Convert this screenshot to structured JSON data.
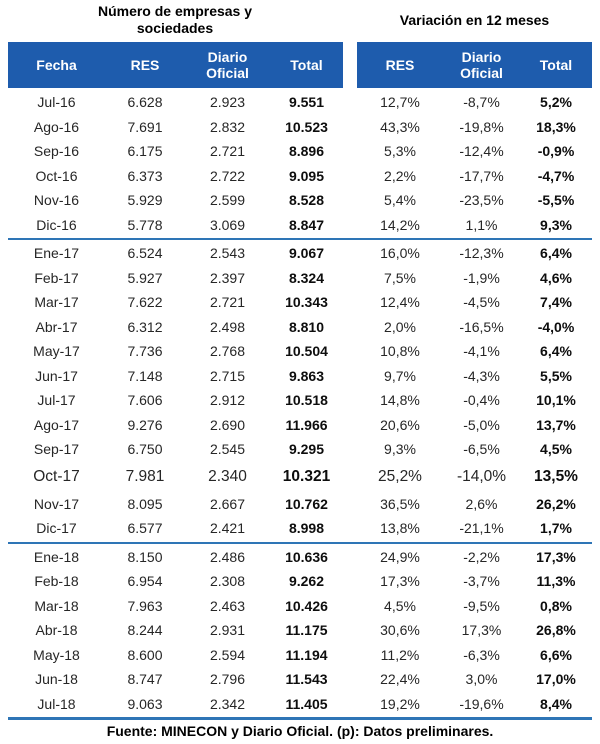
{
  "header": {
    "left_group_title": "Número de empresas y sociedades",
    "right_group_title": "Variación en 12 meses",
    "left_columns": [
      "Fecha",
      "RES",
      "Diario Oficial",
      "Total"
    ],
    "right_columns": [
      "RES",
      "Diario Oficial",
      "Total"
    ]
  },
  "colors": {
    "header_bg": "#1E5CAD",
    "separator": "#2E75B6",
    "header_text": "#FFFFFF"
  },
  "rows": [
    {
      "fecha": "Jul-16",
      "res": "6.628",
      "dio": "2.923",
      "total": "9.551",
      "res_var": "12,7%",
      "dio_var": "-8,7%",
      "total_var": "5,2%"
    },
    {
      "fecha": "Ago-16",
      "res": "7.691",
      "dio": "2.832",
      "total": "10.523",
      "res_var": "43,3%",
      "dio_var": "-19,8%",
      "total_var": "18,3%"
    },
    {
      "fecha": "Sep-16",
      "res": "6.175",
      "dio": "2.721",
      "total": "8.896",
      "res_var": "5,3%",
      "dio_var": "-12,4%",
      "total_var": "-0,9%"
    },
    {
      "fecha": "Oct-16",
      "res": "6.373",
      "dio": "2.722",
      "total": "9.095",
      "res_var": "2,2%",
      "dio_var": "-17,7%",
      "total_var": "-4,7%"
    },
    {
      "fecha": "Nov-16",
      "res": "5.929",
      "dio": "2.599",
      "total": "8.528",
      "res_var": "5,4%",
      "dio_var": "-23,5%",
      "total_var": "-5,5%"
    },
    {
      "fecha": "Dic-16",
      "res": "5.778",
      "dio": "3.069",
      "total": "8.847",
      "res_var": "14,2%",
      "dio_var": "1,1%",
      "total_var": "9,3%",
      "separator_after": true
    },
    {
      "fecha": "Ene-17",
      "res": "6.524",
      "dio": "2.543",
      "total": "9.067",
      "res_var": "16,0%",
      "dio_var": "-12,3%",
      "total_var": "6,4%"
    },
    {
      "fecha": "Feb-17",
      "res": "5.927",
      "dio": "2.397",
      "total": "8.324",
      "res_var": "7,5%",
      "dio_var": "-1,9%",
      "total_var": "4,6%"
    },
    {
      "fecha": "Mar-17",
      "res": "7.622",
      "dio": "2.721",
      "total": "10.343",
      "res_var": "12,4%",
      "dio_var": "-4,5%",
      "total_var": "7,4%"
    },
    {
      "fecha": "Abr-17",
      "res": "6.312",
      "dio": "2.498",
      "total": "8.810",
      "res_var": "2,0%",
      "dio_var": "-16,5%",
      "total_var": "-4,0%"
    },
    {
      "fecha": "May-17",
      "res": "7.736",
      "dio": "2.768",
      "total": "10.504",
      "res_var": "10,8%",
      "dio_var": "-4,1%",
      "total_var": "6,4%"
    },
    {
      "fecha": "Jun-17",
      "res": "7.148",
      "dio": "2.715",
      "total": "9.863",
      "res_var": "9,7%",
      "dio_var": "-4,3%",
      "total_var": "5,5%"
    },
    {
      "fecha": "Jul-17",
      "res": "7.606",
      "dio": "2.912",
      "total": "10.518",
      "res_var": "14,8%",
      "dio_var": "-0,4%",
      "total_var": "10,1%"
    },
    {
      "fecha": "Ago-17",
      "res": "9.276",
      "dio": "2.690",
      "total": "11.966",
      "res_var": "20,6%",
      "dio_var": "-5,0%",
      "total_var": "13,7%"
    },
    {
      "fecha": "Sep-17",
      "res": "6.750",
      "dio": "2.545",
      "total": "9.295",
      "res_var": "9,3%",
      "dio_var": "-6,5%",
      "total_var": "4,5%"
    },
    {
      "fecha": "Oct-17",
      "res": "7.981",
      "dio": "2.340",
      "total": "10.321",
      "res_var": "25,2%",
      "dio_var": "-14,0%",
      "total_var": "13,5%",
      "emphasis": true
    },
    {
      "fecha": "Nov-17",
      "res": "8.095",
      "dio": "2.667",
      "total": "10.762",
      "res_var": "36,5%",
      "dio_var": "2,6%",
      "total_var": "26,2%"
    },
    {
      "fecha": "Dic-17",
      "res": "6.577",
      "dio": "2.421",
      "total": "8.998",
      "res_var": "13,8%",
      "dio_var": "-21,1%",
      "total_var": "1,7%",
      "separator_after": true
    },
    {
      "fecha": "Ene-18",
      "res": "8.150",
      "dio": "2.486",
      "total": "10.636",
      "res_var": "24,9%",
      "dio_var": "-2,2%",
      "total_var": "17,3%"
    },
    {
      "fecha": "Feb-18",
      "res": "6.954",
      "dio": "2.308",
      "total": "9.262",
      "res_var": "17,3%",
      "dio_var": "-3,7%",
      "total_var": "11,3%"
    },
    {
      "fecha": "Mar-18",
      "res": "7.963",
      "dio": "2.463",
      "total": "10.426",
      "res_var": "4,5%",
      "dio_var": "-9,5%",
      "total_var": "0,8%"
    },
    {
      "fecha": "Abr-18",
      "res": "8.244",
      "dio": "2.931",
      "total": "11.175",
      "res_var": "30,6%",
      "dio_var": "17,3%",
      "total_var": "26,8%"
    },
    {
      "fecha": "May-18",
      "res": "8.600",
      "dio": "2.594",
      "total": "11.194",
      "res_var": "11,2%",
      "dio_var": "-6,3%",
      "total_var": "6,6%"
    },
    {
      "fecha": "Jun-18",
      "res": "8.747",
      "dio": "2.796",
      "total": "11.543",
      "res_var": "22,4%",
      "dio_var": "3,0%",
      "total_var": "17,0%"
    },
    {
      "fecha": "Jul-18",
      "res": "9.063",
      "dio": "2.342",
      "total": "11.405",
      "res_var": "19,2%",
      "dio_var": "-19,6%",
      "total_var": "8,4%"
    }
  ],
  "footer": "Fuente: MINECON y Diario Oficial. (p): Datos preliminares."
}
